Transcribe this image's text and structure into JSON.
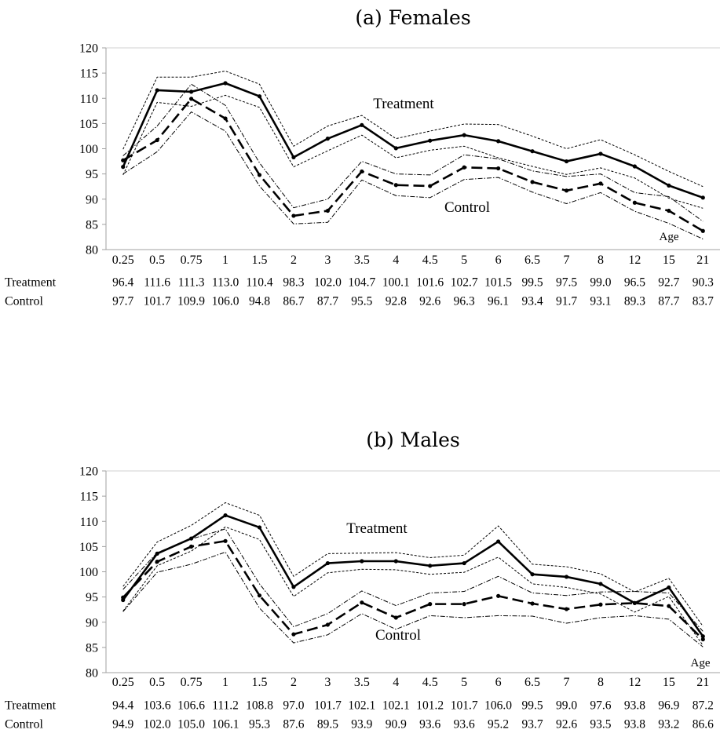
{
  "chart_data": [
    {
      "type": "line",
      "title": "(a) Females",
      "categories": [
        "0.25",
        "0.5",
        "0.75",
        "1",
        "1.5",
        "2",
        "3",
        "3.5",
        "4",
        "4.5",
        "5",
        "6",
        "6.5",
        "7",
        "8",
        "12",
        "15",
        "21"
      ],
      "ylim": [
        80,
        120
      ],
      "yticks": [
        80,
        85,
        90,
        95,
        100,
        105,
        110,
        115,
        120
      ],
      "xlabel": "Age",
      "grid": false,
      "series_labels": {
        "treatment": "Treatment",
        "control": "Control"
      },
      "table_labels": {
        "treatment": "Treatment",
        "control": "Control"
      },
      "table_values": {
        "treatment": [
          "96.4",
          "111.6",
          "111.3",
          "113.0",
          "110.4",
          "98.3",
          "102.0",
          "104.7",
          "100.1",
          "101.6",
          "102.7",
          "101.5",
          "99.5",
          "97.5",
          "99.0",
          "96.5",
          "92.7",
          "90.3"
        ],
        "control": [
          "97.7",
          "101.7",
          "109.9",
          "106.0",
          "94.8",
          "86.7",
          "87.7",
          "95.5",
          "92.8",
          "92.6",
          "96.3",
          "96.1",
          "93.4",
          "91.7",
          "93.1",
          "89.3",
          "87.7",
          "83.7"
        ]
      },
      "series": [
        {
          "key": "treatment",
          "values": [
            96.4,
            111.6,
            111.3,
            113.0,
            110.4,
            98.3,
            102.0,
            104.7,
            100.1,
            101.6,
            102.7,
            101.5,
            99.5,
            97.5,
            99.0,
            96.5,
            92.7,
            90.3
          ]
        },
        {
          "key": "treatment_upper",
          "values": [
            99.9,
            114.2,
            114.2,
            115.4,
            112.8,
            100.5,
            104.5,
            106.6,
            102.0,
            103.5,
            104.9,
            104.8,
            102.5,
            100.0,
            101.8,
            98.8,
            95.5,
            92.5
          ]
        },
        {
          "key": "treatment_lower",
          "values": [
            94.8,
            109.2,
            108.4,
            110.6,
            108.2,
            96.4,
            99.6,
            102.7,
            98.2,
            99.7,
            100.5,
            98.2,
            96.5,
            94.9,
            96.2,
            94.2,
            90.2,
            88.2
          ]
        },
        {
          "key": "control",
          "values": [
            97.7,
            101.7,
            109.9,
            106.0,
            94.8,
            86.7,
            87.7,
            95.5,
            92.8,
            92.6,
            96.3,
            96.1,
            93.4,
            91.7,
            93.1,
            89.3,
            87.7,
            83.7
          ]
        },
        {
          "key": "control_upper",
          "values": [
            98.6,
            104.5,
            112.8,
            108.6,
            97.2,
            88.3,
            90.0,
            97.5,
            95.0,
            94.8,
            98.8,
            98.0,
            95.6,
            94.5,
            95.0,
            91.3,
            90.5,
            85.6
          ]
        },
        {
          "key": "control_lower",
          "values": [
            95.0,
            99.4,
            107.3,
            103.5,
            92.6,
            85.1,
            85.4,
            93.8,
            90.7,
            90.3,
            93.9,
            94.3,
            91.4,
            89.1,
            91.3,
            87.6,
            85.2,
            82.1
          ]
        }
      ]
    },
    {
      "type": "line",
      "title": "(b) Males",
      "categories": [
        "0.25",
        "0.5",
        "0.75",
        "1",
        "1.5",
        "2",
        "3",
        "3.5",
        "4",
        "4.5",
        "5",
        "6",
        "6.5",
        "7",
        "8",
        "12",
        "15",
        "21"
      ],
      "ylim": [
        80,
        120
      ],
      "yticks": [
        80,
        85,
        90,
        95,
        100,
        105,
        110,
        115,
        120
      ],
      "xlabel": "Age",
      "grid": false,
      "series_labels": {
        "treatment": "Treatment",
        "control": "Control"
      },
      "table_labels": {
        "treatment": "Treatment",
        "control": "Control"
      },
      "table_values": {
        "treatment": [
          "94.4",
          "103.6",
          "106.6",
          "111.2",
          "108.8",
          "97.0",
          "101.7",
          "102.1",
          "102.1",
          "101.2",
          "101.7",
          "106.0",
          "99.5",
          "99.0",
          "97.6",
          "93.8",
          "96.9",
          "87.2"
        ],
        "control": [
          "94.9",
          "102.0",
          "105.0",
          "106.1",
          "95.3",
          "87.6",
          "89.5",
          "93.9",
          "90.9",
          "93.6",
          "93.6",
          "95.2",
          "93.7",
          "92.6",
          "93.5",
          "93.8",
          "93.2",
          "86.6"
        ]
      },
      "series": [
        {
          "key": "treatment",
          "values": [
            94.4,
            103.6,
            106.6,
            111.2,
            108.8,
            97.0,
            101.7,
            102.1,
            102.1,
            101.2,
            101.7,
            106.0,
            99.5,
            99.0,
            97.6,
            93.8,
            96.9,
            87.2
          ]
        },
        {
          "key": "treatment_upper",
          "values": [
            97.1,
            105.9,
            109.2,
            113.7,
            111.2,
            99.1,
            103.6,
            103.7,
            103.8,
            102.8,
            103.3,
            109.1,
            101.5,
            101.0,
            99.6,
            96.0,
            98.7,
            89.2
          ]
        },
        {
          "key": "treatment_lower",
          "values": [
            92.2,
            101.2,
            104.1,
            108.9,
            106.4,
            95.1,
            99.8,
            100.5,
            100.4,
            99.5,
            99.9,
            102.9,
            97.6,
            96.9,
            95.6,
            92.0,
            95.1,
            85.4
          ]
        },
        {
          "key": "control",
          "values": [
            94.9,
            102.0,
            105.0,
            106.1,
            95.3,
            87.6,
            89.5,
            93.9,
            90.9,
            93.6,
            93.6,
            95.2,
            93.7,
            92.6,
            93.5,
            93.8,
            93.2,
            86.6
          ]
        },
        {
          "key": "control_upper",
          "values": [
            96.5,
            103.8,
            106.5,
            108.5,
            97.6,
            89.1,
            91.7,
            96.2,
            93.3,
            95.8,
            96.1,
            99.1,
            95.8,
            95.3,
            96.0,
            96.1,
            95.8,
            88.2
          ]
        },
        {
          "key": "control_lower",
          "values": [
            92.1,
            99.9,
            101.5,
            103.9,
            92.8,
            85.9,
            87.5,
            91.7,
            88.6,
            91.3,
            90.9,
            91.3,
            91.2,
            89.8,
            90.9,
            91.3,
            90.6,
            85.1
          ]
        }
      ]
    }
  ]
}
